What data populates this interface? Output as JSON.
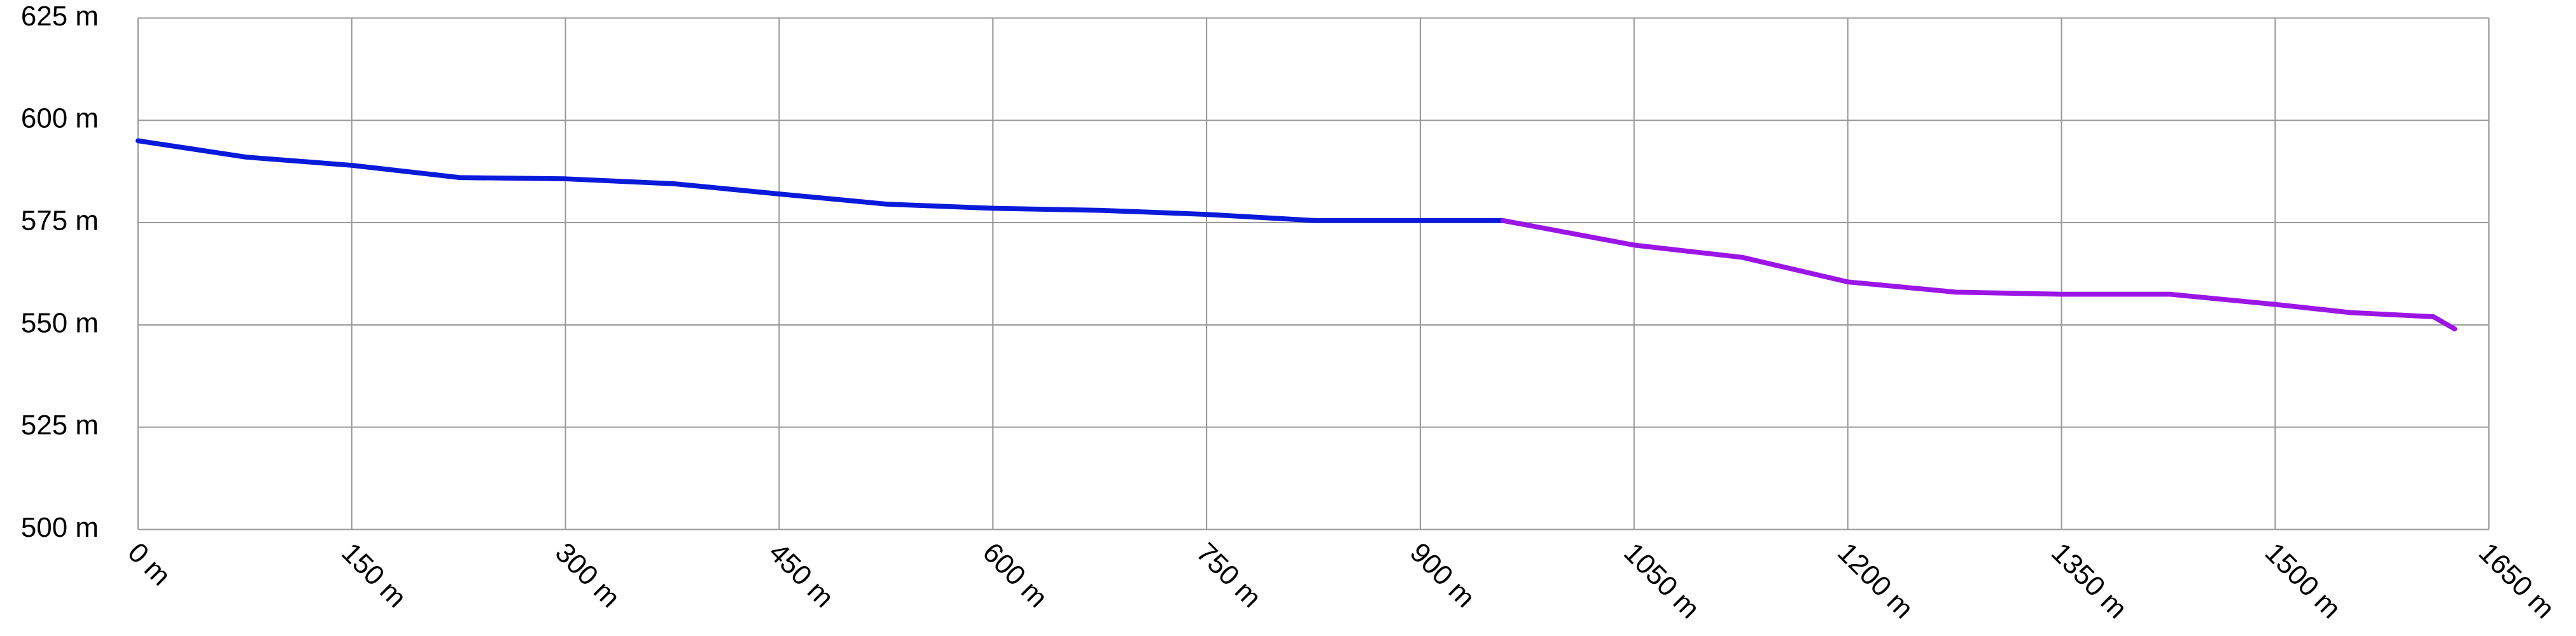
{
  "chart_data": {
    "type": "line",
    "xlim": [
      0,
      1650
    ],
    "xticks": [
      {
        "value": 0,
        "label": "0 m"
      },
      {
        "value": 150,
        "label": "150 m"
      },
      {
        "value": 300,
        "label": "300 m"
      },
      {
        "value": 450,
        "label": "450 m"
      },
      {
        "value": 600,
        "label": "600 m"
      },
      {
        "value": 750,
        "label": "750 m"
      },
      {
        "value": 900,
        "label": "900 m"
      },
      {
        "value": 1050,
        "label": "1050 m"
      },
      {
        "value": 1200,
        "label": "1200 m"
      },
      {
        "value": 1350,
        "label": "1350 m"
      },
      {
        "value": 1500,
        "label": "1500 m"
      },
      {
        "value": 1650,
        "label": "1650 m"
      }
    ],
    "ylim": [
      500,
      625
    ],
    "yticks": [
      {
        "value": 500,
        "label": "500 m"
      },
      {
        "value": 525,
        "label": "525 m"
      },
      {
        "value": 550,
        "label": "550 m"
      },
      {
        "value": 575,
        "label": "575 m"
      },
      {
        "value": 600,
        "label": "600 m"
      },
      {
        "value": 625,
        "label": "625 m"
      }
    ],
    "grid": true,
    "series": [
      {
        "color": "#0a1adb",
        "x": [
          0,
          76,
          150,
          226,
          300,
          376,
          450,
          526,
          600,
          676,
          750,
          826,
          900,
          958
        ],
        "values": [
          595,
          591,
          589,
          586,
          585.7,
          584.5,
          582,
          579.5,
          578.5,
          578,
          577,
          575.5,
          575.5,
          575.5
        ]
      },
      {
        "color": "#9b16e6",
        "x": [
          958,
          1050,
          1126,
          1200,
          1276,
          1350,
          1426,
          1500,
          1553,
          1611,
          1626
        ],
        "values": [
          575.5,
          569.5,
          566.5,
          560.5,
          558,
          557.5,
          557.5,
          555,
          553,
          552,
          549
        ]
      }
    ]
  }
}
